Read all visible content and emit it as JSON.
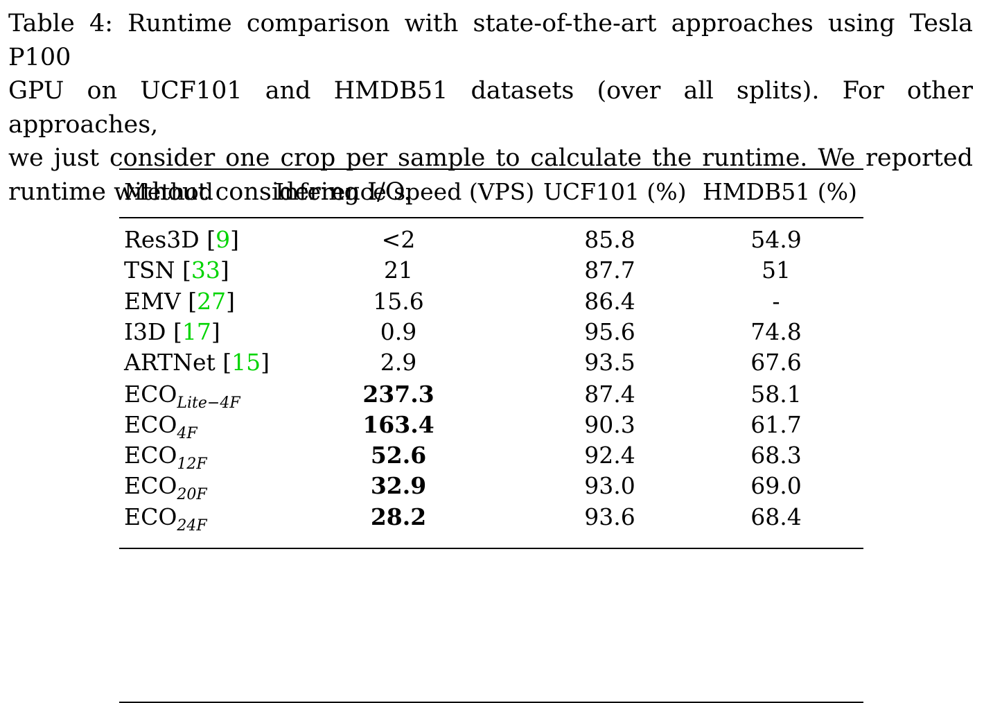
{
  "caption": {
    "lines": [
      "Table 4: Runtime comparison with state-of-the-art approaches using Tesla P100",
      "GPU on UCF101 and HMDB51 datasets (over all splits). For other approaches,",
      "we just consider one crop per sample to calculate the runtime. We reported",
      "runtime without considering I/O."
    ]
  },
  "table": {
    "headers": [
      "Method",
      "Inference speed (VPS)",
      "UCF101 (%)",
      "HMDB51 (%)"
    ],
    "rows_group1": [
      {
        "method": "Res3D",
        "cite": "9",
        "speed": "<2",
        "ucf": "85.8",
        "hmdb": "54.9"
      },
      {
        "method": "TSN",
        "cite": "33",
        "speed": "21",
        "ucf": "87.7",
        "hmdb": "51"
      },
      {
        "method": "EMV",
        "cite": "27",
        "speed": "15.6",
        "ucf": "86.4",
        "hmdb": "-"
      },
      {
        "method": "I3D",
        "cite": "17",
        "speed": "0.9",
        "ucf": "95.6",
        "hmdb": "74.8"
      },
      {
        "method": "ARTNet",
        "cite": "15",
        "speed": "2.9",
        "ucf": "93.5",
        "hmdb": "67.6"
      }
    ],
    "rows_group2": [
      {
        "method": "ECO",
        "sub": "Lite−4F",
        "speed": "237.3",
        "ucf": "87.4",
        "hmdb": "58.1"
      },
      {
        "method": "ECO",
        "sub": "4F",
        "speed": "163.4",
        "ucf": "90.3",
        "hmdb": "61.7"
      },
      {
        "method": "ECO",
        "sub": "12F",
        "speed": "52.6",
        "ucf": "92.4",
        "hmdb": "68.3"
      },
      {
        "method": "ECO",
        "sub": "20F",
        "speed": "32.9",
        "ucf": "93.0",
        "hmdb": "69.0"
      },
      {
        "method": "ECO",
        "sub": "24F",
        "speed": "28.2",
        "ucf": "93.6",
        "hmdb": "68.4"
      }
    ]
  }
}
